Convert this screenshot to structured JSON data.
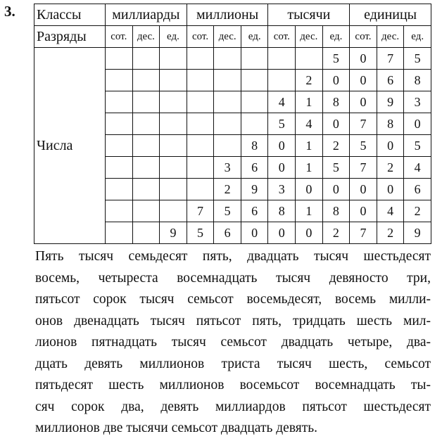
{
  "task_number": "3.",
  "table": {
    "classes_label": "Классы",
    "classes": [
      "миллиарды",
      "миллионы",
      "тысячи",
      "единицы"
    ],
    "digits_label": "Разряды",
    "digits": [
      "сот.",
      "дес.",
      "ед.",
      "сот.",
      "дес.",
      "ед.",
      "сот.",
      "дес.",
      "ед.",
      "сот.",
      "дес.",
      "ед."
    ],
    "numbers_label": "Числа",
    "rows": [
      [
        "",
        "",
        "",
        "",
        "",
        "",
        "",
        "",
        "5",
        "0",
        "7",
        "5"
      ],
      [
        "",
        "",
        "",
        "",
        "",
        "",
        "",
        "2",
        "0",
        "0",
        "6",
        "8"
      ],
      [
        "",
        "",
        "",
        "",
        "",
        "",
        "4",
        "1",
        "8",
        "0",
        "9",
        "3"
      ],
      [
        "",
        "",
        "",
        "",
        "",
        "",
        "5",
        "4",
        "0",
        "7",
        "8",
        "0"
      ],
      [
        "",
        "",
        "",
        "",
        "",
        "8",
        "0",
        "1",
        "2",
        "5",
        "0",
        "5"
      ],
      [
        "",
        "",
        "",
        "",
        "3",
        "6",
        "0",
        "1",
        "5",
        "7",
        "2",
        "4"
      ],
      [
        "",
        "",
        "",
        "",
        "2",
        "9",
        "3",
        "0",
        "0",
        "0",
        "0",
        "6"
      ],
      [
        "",
        "",
        "",
        "7",
        "5",
        "6",
        "8",
        "1",
        "8",
        "0",
        "4",
        "2"
      ],
      [
        "",
        "",
        "9",
        "5",
        "6",
        "0",
        "0",
        "0",
        "2",
        "7",
        "2",
        "9"
      ]
    ]
  },
  "answer_lines": [
    "Пять тысяч семьдесят пять, двадцать тысяч шестьдесят",
    "восемь, четыреста восемнадцать тысяч девяносто три,",
    "пятьсот сорок тысяч семьсот восемьдесят, восемь милли-",
    "онов двенадцать тысяч пятьсот пять, тридцать шесть мил-",
    "лионов пятнадцать тысяч семьсот двадцать четыре, два-",
    "дцать девять миллионов триста тысяч шесть, семьсот",
    "пятьдесят шесть миллионов восемьсот восемнадцать ты-",
    "сяч сорок два, девять миллиардов пятьсот шестьдесят",
    "миллионов две тысячи семьсот двадцать девять."
  ]
}
